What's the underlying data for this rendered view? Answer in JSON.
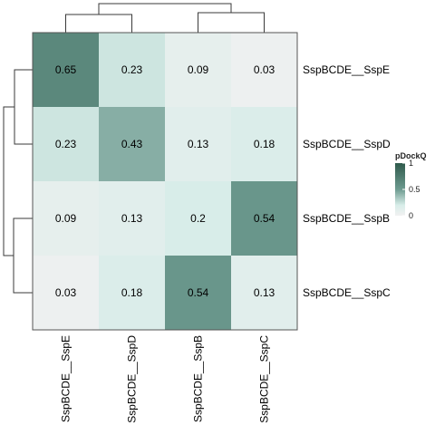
{
  "chart_data": {
    "type": "heatmap",
    "rows": [
      "SspBCDE__SspE",
      "SspBCDE__SspD",
      "SspBCDE__SspB",
      "SspBCDE__SspC"
    ],
    "columns": [
      "SspBCDE__SspE",
      "SspBCDE__SspD",
      "SspBCDE__SspB",
      "SspBCDE__SspC"
    ],
    "values": [
      [
        0.65,
        0.23,
        0.09,
        0.03
      ],
      [
        0.23,
        0.43,
        0.13,
        0.18
      ],
      [
        0.09,
        0.13,
        0.2,
        0.54
      ],
      [
        0.03,
        0.18,
        0.54,
        0.13
      ]
    ],
    "cell_labels": [
      [
        "0.65",
        "0.23",
        "0.09",
        "0.03"
      ],
      [
        "0.23",
        "0.43",
        "0.13",
        "0.18"
      ],
      [
        "0.09",
        "0.13",
        "0.2",
        "0.54"
      ],
      [
        "0.03",
        "0.18",
        "0.54",
        "0.13"
      ]
    ],
    "color_scale": {
      "title": "pDockQ",
      "min": 0,
      "max": 1,
      "colors": [
        "#f1f1f1",
        "#d8ede9",
        "#6e9b90",
        "#2f5a4c"
      ],
      "ticks": [
        {
          "value": 0,
          "label": "0"
        },
        {
          "value": 0.5,
          "label": "0.5"
        },
        {
          "value": 1,
          "label": "1"
        }
      ]
    },
    "row_dendrogram": true,
    "column_dendrogram": true,
    "grid": false,
    "legend_position": "right"
  }
}
